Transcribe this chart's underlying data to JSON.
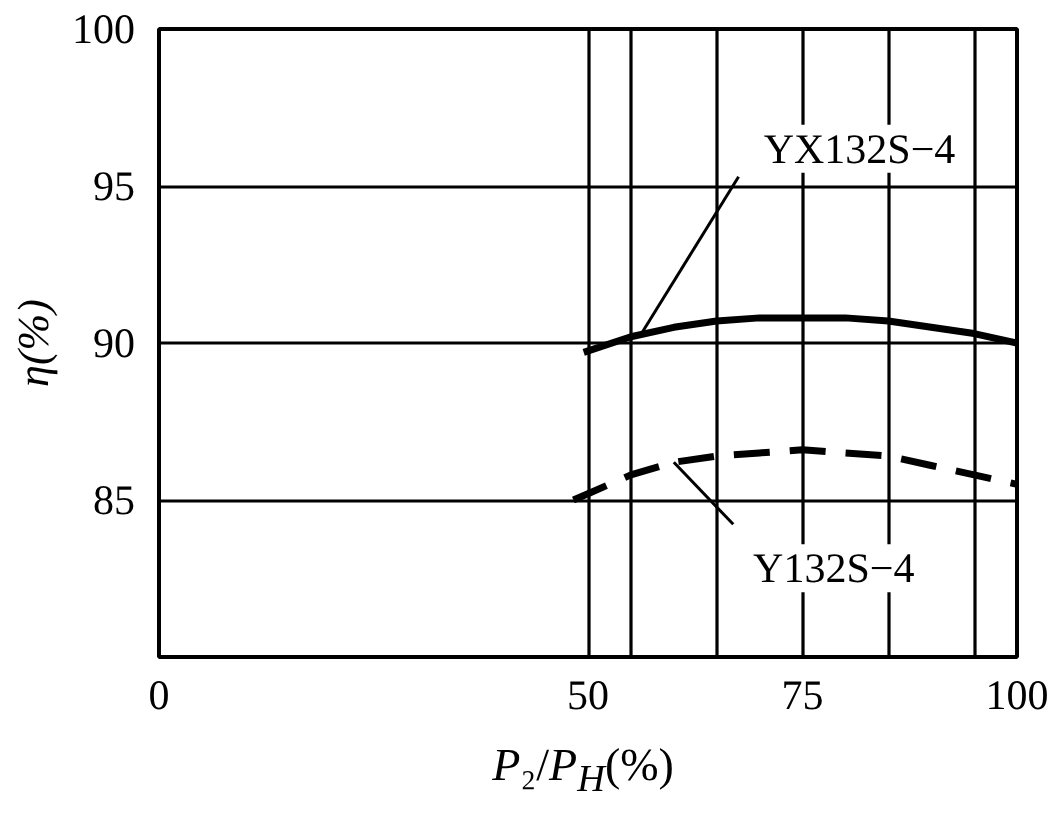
{
  "chart_data": {
    "type": "line",
    "xlabel": "P₂/P$_{H}$(%)",
    "ylabel": "η(%)",
    "xlim": [
      0,
      100
    ],
    "ylim": [
      80,
      100
    ],
    "xticks": [
      0,
      50,
      {
        "value": 55,
        "label": null
      },
      {
        "value": 65,
        "label": null
      },
      75,
      {
        "value": 85,
        "label": null
      },
      {
        "value": 95,
        "label": null
      },
      100
    ],
    "yticks": [
      85,
      90,
      95,
      100
    ],
    "grid": true,
    "series": [
      {
        "color": "#000000",
        "line_style": "solid",
        "x": [
          49.5,
          55,
          60,
          65,
          70,
          75,
          80,
          85,
          90,
          95,
          100
        ],
        "values": [
          89.7,
          90.2,
          90.5,
          90.7,
          90.8,
          90.8,
          90.8,
          90.7,
          90.5,
          90.3,
          90.0
        ]
      },
      {
        "color": "#000000",
        "line_style": "dashed",
        "x": [
          48.3,
          50,
          55,
          60,
          65,
          70,
          75,
          80,
          85,
          90,
          95,
          100
        ],
        "values": [
          85.0,
          85.2,
          85.8,
          86.2,
          86.4,
          86.5,
          86.6,
          86.5,
          86.4,
          86.1,
          85.8,
          85.5
        ]
      }
    ],
    "annotations": [
      {
        "text": "YX132S−4",
        "x": 56,
        "y": 90.2
      },
      {
        "text": "Y132S−4",
        "x": 60,
        "y": 86.2
      }
    ]
  }
}
